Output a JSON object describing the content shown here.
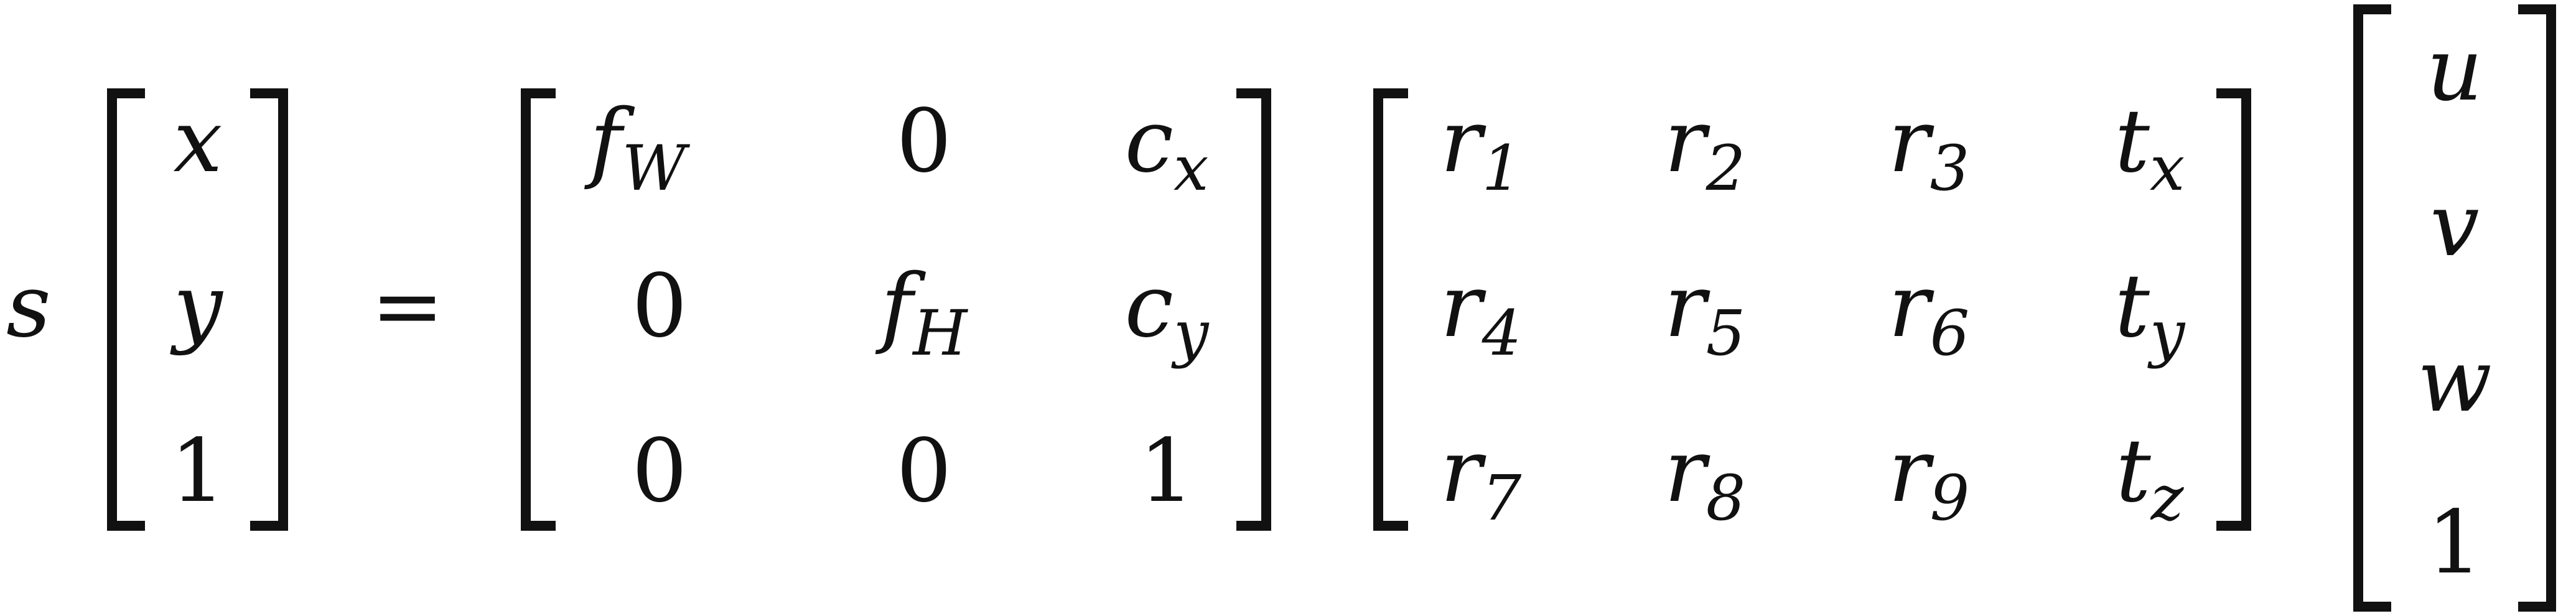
{
  "equation": {
    "scalar": "s",
    "equals": "=",
    "lhs_vector": [
      "x",
      "y",
      "1"
    ],
    "intrinsic": {
      "rows": [
        [
          {
            "main": "f",
            "sub": "W"
          },
          {
            "main": "0",
            "sub": ""
          },
          {
            "main": "c",
            "sub": "x"
          }
        ],
        [
          {
            "main": "0",
            "sub": ""
          },
          {
            "main": "f",
            "sub": "H"
          },
          {
            "main": "c",
            "sub": "y"
          }
        ],
        [
          {
            "main": "0",
            "sub": ""
          },
          {
            "main": "0",
            "sub": ""
          },
          {
            "main": "1",
            "sub": ""
          }
        ]
      ]
    },
    "extrinsic": {
      "rows": [
        [
          {
            "main": "r",
            "sub": "1"
          },
          {
            "main": "r",
            "sub": "2"
          },
          {
            "main": "r",
            "sub": "3"
          },
          {
            "main": "t",
            "sub": "x"
          }
        ],
        [
          {
            "main": "r",
            "sub": "4"
          },
          {
            "main": "r",
            "sub": "5"
          },
          {
            "main": "r",
            "sub": "6"
          },
          {
            "main": "t",
            "sub": "y"
          }
        ],
        [
          {
            "main": "r",
            "sub": "7"
          },
          {
            "main": "r",
            "sub": "8"
          },
          {
            "main": "r",
            "sub": "9"
          },
          {
            "main": "t",
            "sub": "z"
          }
        ]
      ]
    },
    "world_vector": [
      "u",
      "v",
      "w",
      "1"
    ]
  }
}
